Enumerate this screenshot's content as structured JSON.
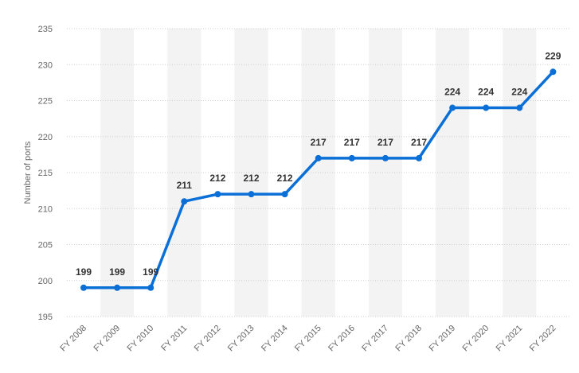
{
  "chart_data": {
    "type": "line",
    "categories": [
      "FY 2008",
      "FY 2009",
      "FY 2010",
      "FY 2011",
      "FY 2012",
      "FY 2013",
      "FY 2014",
      "FY 2015",
      "FY 2016",
      "FY 2017",
      "FY 2018",
      "FY 2019",
      "FY 2020",
      "FY 2021",
      "FY 2022"
    ],
    "series": [
      {
        "values": [
          199,
          199,
          199,
          211,
          212,
          212,
          212,
          217,
          217,
          217,
          217,
          224,
          224,
          224,
          229
        ]
      }
    ],
    "data_labels": [
      "199",
      "199",
      "199",
      "211",
      "212",
      "212",
      "212",
      "217",
      "217",
      "217",
      "217",
      "224",
      "224",
      "224",
      "229"
    ],
    "title": "",
    "xlabel": "",
    "ylabel": "Number of ports",
    "ylim": [
      195,
      235
    ],
    "yticks": [
      195,
      200,
      205,
      210,
      215,
      220,
      225,
      230,
      235
    ],
    "ytick_labels": [
      "195",
      "200",
      "205",
      "210",
      "215",
      "220",
      "225",
      "230",
      "235"
    ],
    "grid": true,
    "legend": "none",
    "colors": {
      "line": "#0a6fd6",
      "band": "#f3f3f3",
      "grid": "#cfcfcf"
    }
  }
}
